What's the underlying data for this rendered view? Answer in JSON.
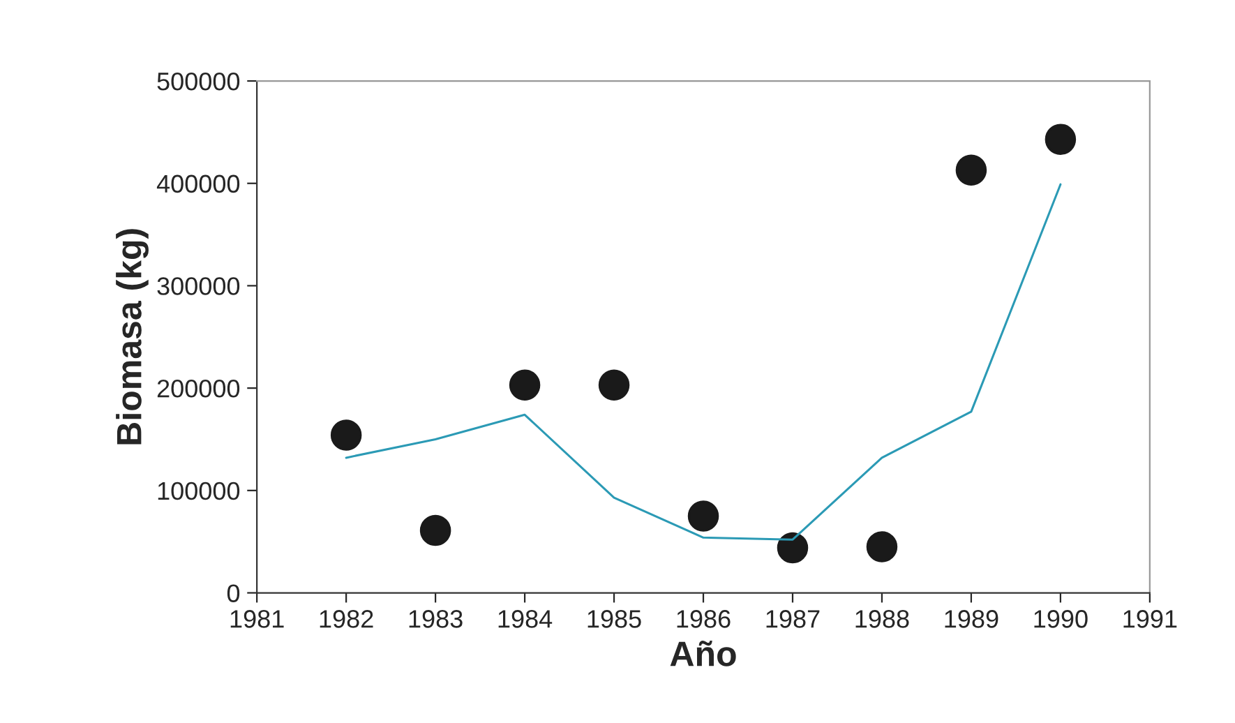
{
  "chart_data": {
    "type": "scatter",
    "xlabel": "Año",
    "ylabel": "Biomasa (kg)",
    "xlim": [
      1981,
      1991
    ],
    "xticks": [
      1981,
      1982,
      1983,
      1984,
      1985,
      1986,
      1987,
      1988,
      1989,
      1990,
      1991
    ],
    "ylim": [
      0,
      500000
    ],
    "yticks": [
      0,
      100000,
      200000,
      300000,
      400000,
      500000
    ],
    "grid": false,
    "legend": false,
    "series": [
      {
        "color": "#1a1a1a",
        "marker": "circle",
        "x": [
          1982,
          1983,
          1984,
          1985,
          1986,
          1987,
          1988,
          1989,
          1990
        ],
        "values": [
          154000,
          61000,
          203000,
          203000,
          75000,
          44000,
          45000,
          413000,
          443000
        ]
      },
      {
        "type": "line",
        "color": "#2b9ab5",
        "marker": "none",
        "line_style": "solid",
        "x": [
          1982,
          1983,
          1984,
          1985,
          1986,
          1987,
          1988,
          1989,
          1990
        ],
        "values": [
          132000,
          150000,
          174000,
          93000,
          54000,
          52000,
          132000,
          177000,
          399000
        ]
      }
    ]
  }
}
